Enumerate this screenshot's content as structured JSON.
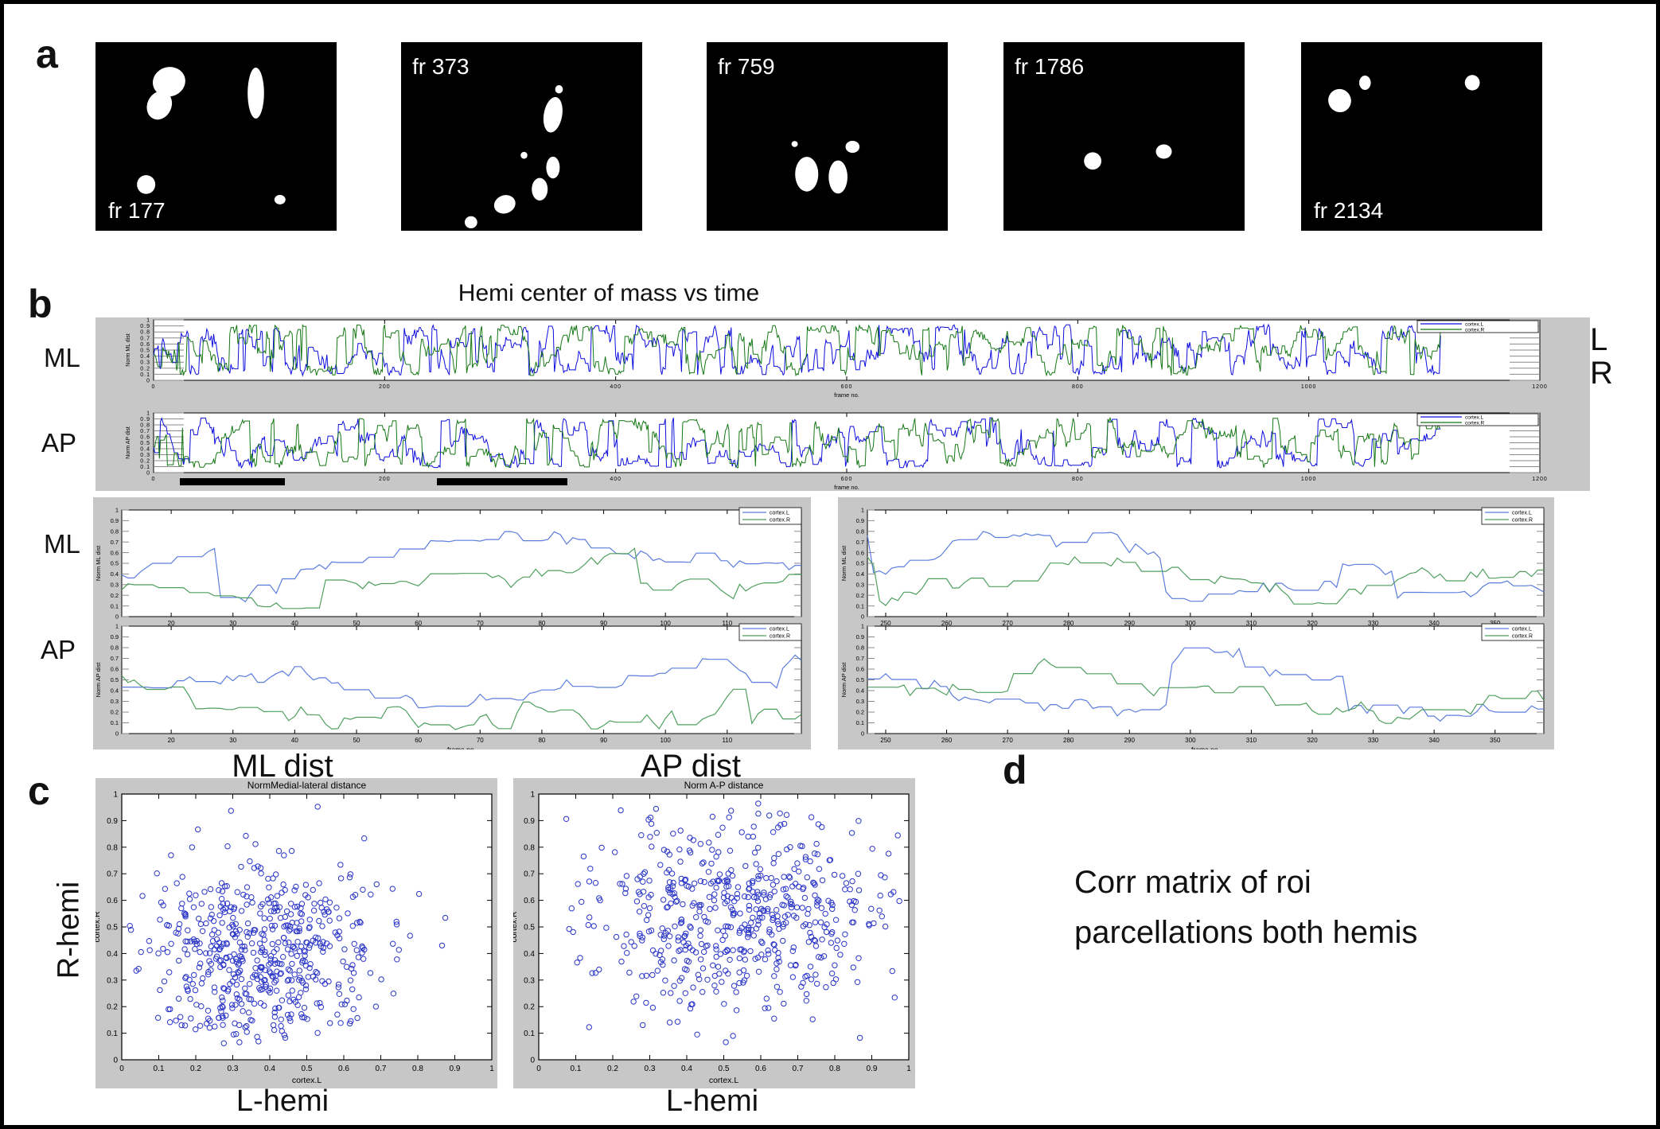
{
  "figure": {
    "bg": "#ffffff",
    "border_color": "#000000",
    "panel_bg": "#c7c7c7"
  },
  "panel_a": {
    "label": "a",
    "frames": [
      {
        "label": "fr 177",
        "label_pos": "bottom-left",
        "blobs": [
          [
            0.305,
            0.21,
            0.068,
            0.078,
            -15
          ],
          [
            0.265,
            0.335,
            0.05,
            0.078,
            25
          ],
          [
            0.665,
            0.27,
            0.034,
            0.135,
            0
          ],
          [
            0.21,
            0.755,
            0.038,
            0.05,
            0
          ],
          [
            0.765,
            0.835,
            0.023,
            0.025,
            0
          ]
        ]
      },
      {
        "label": "fr 373",
        "label_pos": "top-left",
        "blobs": [
          [
            0.63,
            0.385,
            0.038,
            0.095,
            10
          ],
          [
            0.655,
            0.25,
            0.016,
            0.022,
            0
          ],
          [
            0.63,
            0.665,
            0.028,
            0.058,
            0
          ],
          [
            0.575,
            0.78,
            0.033,
            0.06,
            0
          ],
          [
            0.43,
            0.86,
            0.045,
            0.048,
            -20
          ],
          [
            0.29,
            0.955,
            0.026,
            0.032,
            0
          ],
          [
            0.51,
            0.6,
            0.014,
            0.018,
            0
          ]
        ]
      },
      {
        "label": "fr 759",
        "label_pos": "top-left",
        "blobs": [
          [
            0.415,
            0.7,
            0.048,
            0.092,
            0
          ],
          [
            0.545,
            0.715,
            0.039,
            0.088,
            0
          ],
          [
            0.605,
            0.555,
            0.029,
            0.032,
            0
          ],
          [
            0.365,
            0.54,
            0.013,
            0.016,
            0
          ]
        ]
      },
      {
        "label": "fr 1786",
        "label_pos": "top-left",
        "blobs": [
          [
            0.37,
            0.63,
            0.036,
            0.046,
            0
          ],
          [
            0.665,
            0.58,
            0.033,
            0.038,
            0
          ]
        ]
      },
      {
        "label": "fr 2134",
        "label_pos": "bottom-left",
        "blobs": [
          [
            0.16,
            0.31,
            0.047,
            0.062,
            -30
          ],
          [
            0.265,
            0.215,
            0.024,
            0.038,
            0
          ],
          [
            0.71,
            0.215,
            0.031,
            0.041,
            0
          ]
        ]
      }
    ]
  },
  "panel_b": {
    "label": "b",
    "title": "Hemi center of mass vs time",
    "row_labels": [
      "ML",
      "AP",
      "ML",
      "AP"
    ],
    "outer_legend": {
      "items": [
        {
          "label": "L",
          "color": "#0d0dde"
        },
        {
          "label": "R",
          "color": "#157815"
        }
      ]
    },
    "highlight_bars": [
      {
        "from_frame": 23,
        "to_frame": 114
      },
      {
        "from_frame": 245,
        "to_frame": 358
      }
    ]
  },
  "panel_c": {
    "label": "c",
    "left_title": "ML dist",
    "right_title": "AP dist",
    "ylabel_big": "R-hemi",
    "xlabel_big_left": "L-hemi",
    "xlabel_big_right": "L-hemi"
  },
  "panel_d": {
    "label": "d",
    "text_line1": "Corr matrix of roi",
    "text_line2": "parcellations both hemis"
  },
  "chart_data": [
    {
      "id": "ml_time_full",
      "type": "line",
      "kind": "big",
      "ylabel": "Norm ML dist",
      "xlabel": "frame no.",
      "xlim": [
        0,
        1200
      ],
      "ylim": [
        0,
        1
      ],
      "xticks": [
        0,
        200,
        400,
        600,
        800,
        1000,
        1200
      ],
      "yticks": [
        0,
        0.1,
        0.2,
        0.3,
        0.4,
        0.5,
        0.6,
        0.7,
        0.8,
        0.9,
        1
      ],
      "legend": [
        "cortex.L",
        "cortex.R"
      ],
      "legend_pos": "top-right",
      "series": [
        {
          "name": "cortex.L",
          "color": "#0d0dde",
          "gen": {
            "seed": 11,
            "n": 1115,
            "min": 0.08,
            "max": 0.92,
            "step": 0.16,
            "jump": 0.22,
            "holdp": 0.25,
            "holdlen": 3,
            "start": 0.4,
            "estimated": true
          }
        },
        {
          "name": "cortex.R",
          "color": "#157815",
          "gen": {
            "seed": 21,
            "n": 1115,
            "min": 0.08,
            "max": 0.92,
            "step": 0.16,
            "jump": 0.22,
            "holdp": 0.25,
            "holdlen": 3,
            "start": 0.45,
            "estimated": true
          }
        }
      ]
    },
    {
      "id": "ap_time_full",
      "type": "line",
      "kind": "big",
      "ylabel": "Norm AP dist",
      "xlabel": "frame no.",
      "xlim": [
        0,
        1200
      ],
      "ylim": [
        0,
        1
      ],
      "xticks": [
        0,
        200,
        400,
        600,
        800,
        1000,
        1200
      ],
      "yticks": [
        0,
        0.1,
        0.2,
        0.3,
        0.4,
        0.5,
        0.6,
        0.7,
        0.8,
        0.9,
        1
      ],
      "legend": [
        "cortex.L",
        "cortex.R"
      ],
      "legend_pos": "top-right",
      "series": [
        {
          "name": "cortex.L",
          "color": "#0d0dde",
          "gen": {
            "seed": 12,
            "n": 1115,
            "min": 0.08,
            "max": 0.92,
            "step": 0.14,
            "jump": 0.16,
            "holdp": 0.3,
            "holdlen": 4,
            "start": 0.55,
            "estimated": true
          }
        },
        {
          "name": "cortex.R",
          "color": "#157815",
          "gen": {
            "seed": 22,
            "n": 1115,
            "min": 0.08,
            "max": 0.92,
            "step": 0.14,
            "jump": 0.16,
            "holdp": 0.3,
            "holdlen": 4,
            "start": 0.5,
            "estimated": true
          }
        }
      ]
    },
    {
      "id": "ml_zoom_early",
      "type": "line",
      "kind": "zoom",
      "ylabel": "Norm ML dist",
      "xlabel": "frame no.",
      "xlim": [
        12,
        122
      ],
      "ylim": [
        0,
        1
      ],
      "xticks": [
        20,
        30,
        40,
        50,
        60,
        70,
        80,
        90,
        100,
        110
      ],
      "yticks": [
        0,
        0.1,
        0.2,
        0.3,
        0.4,
        0.5,
        0.6,
        0.7,
        0.8,
        0.9,
        1
      ],
      "legend": [
        "cortex.L",
        "cortex.R"
      ],
      "legend_pos": "top-right",
      "series": [
        {
          "name": "cortex.L",
          "color": "#5b7ddd",
          "gen": {
            "seed": 31,
            "n": 111,
            "min": 0.05,
            "max": 0.8,
            "step": 0.09,
            "jump": 0.05,
            "holdp": 0.4,
            "holdlen": 4,
            "start": 0.33,
            "estimated": true
          }
        },
        {
          "name": "cortex.R",
          "color": "#4f9f5f",
          "gen": {
            "seed": 41,
            "n": 111,
            "min": 0.06,
            "max": 0.65,
            "step": 0.08,
            "jump": 0.05,
            "holdp": 0.4,
            "holdlen": 4,
            "start": 0.25,
            "estimated": true
          }
        }
      ]
    },
    {
      "id": "ap_zoom_early",
      "type": "line",
      "kind": "zoom",
      "ylabel": "Norm AP dist",
      "xlabel": "frame no.",
      "xlim": [
        12,
        122
      ],
      "ylim": [
        0,
        1
      ],
      "xticks": [
        20,
        30,
        40,
        50,
        60,
        70,
        80,
        90,
        100,
        110
      ],
      "yticks": [
        0,
        0.1,
        0.2,
        0.3,
        0.4,
        0.5,
        0.6,
        0.7,
        0.8,
        0.9,
        1
      ],
      "legend": [
        "cortex.L",
        "cortex.R"
      ],
      "legend_pos": "top-right",
      "series": [
        {
          "name": "cortex.L",
          "color": "#5b7ddd",
          "gen": {
            "seed": 32,
            "n": 111,
            "min": 0.1,
            "max": 0.85,
            "step": 0.09,
            "jump": 0.05,
            "holdp": 0.4,
            "holdlen": 4,
            "start": 0.38,
            "estimated": true
          }
        },
        {
          "name": "cortex.R",
          "color": "#4f9f5f",
          "gen": {
            "seed": 42,
            "n": 111,
            "min": 0.03,
            "max": 0.78,
            "step": 0.1,
            "jump": 0.06,
            "holdp": 0.35,
            "holdlen": 4,
            "start": 0.55,
            "estimated": true
          }
        }
      ]
    },
    {
      "id": "ml_zoom_late",
      "type": "line",
      "kind": "zoom",
      "ylabel": "Norm ML dist",
      "xlabel": "frame no.",
      "xlim": [
        247,
        358
      ],
      "ylim": [
        0,
        1
      ],
      "xticks": [
        250,
        260,
        270,
        280,
        290,
        300,
        310,
        320,
        330,
        340,
        350
      ],
      "yticks": [
        0,
        0.1,
        0.2,
        0.3,
        0.4,
        0.5,
        0.6,
        0.7,
        0.8,
        0.9,
        1
      ],
      "legend": [
        "cortex.L",
        "cortex.R"
      ],
      "legend_pos": "top-right",
      "series": [
        {
          "name": "cortex.L",
          "color": "#5b7ddd",
          "gen": {
            "seed": 33,
            "n": 112,
            "min": 0.1,
            "max": 0.8,
            "step": 0.09,
            "jump": 0.05,
            "holdp": 0.4,
            "holdlen": 4,
            "start": 0.72,
            "estimated": true
          }
        },
        {
          "name": "cortex.R",
          "color": "#4f9f5f",
          "gen": {
            "seed": 43,
            "n": 112,
            "min": 0.1,
            "max": 0.87,
            "step": 0.09,
            "jump": 0.05,
            "holdp": 0.4,
            "holdlen": 4,
            "start": 0.6,
            "estimated": true
          }
        }
      ]
    },
    {
      "id": "ap_zoom_late",
      "type": "line",
      "kind": "zoom",
      "ylabel": "Norm AP dist",
      "xlabel": "frame no.",
      "xlim": [
        247,
        358
      ],
      "ylim": [
        0,
        1
      ],
      "xticks": [
        250,
        260,
        270,
        280,
        290,
        300,
        310,
        320,
        330,
        340,
        350
      ],
      "yticks": [
        0,
        0.1,
        0.2,
        0.3,
        0.4,
        0.5,
        0.6,
        0.7,
        0.8,
        0.9,
        1
      ],
      "legend": [
        "cortex.L",
        "cortex.R"
      ],
      "legend_pos": "top-right",
      "series": [
        {
          "name": "cortex.L",
          "color": "#5b7ddd",
          "gen": {
            "seed": 34,
            "n": 112,
            "min": 0.1,
            "max": 0.8,
            "step": 0.09,
            "jump": 0.05,
            "holdp": 0.4,
            "holdlen": 4,
            "start": 0.45,
            "estimated": true
          }
        },
        {
          "name": "cortex.R",
          "color": "#4f9f5f",
          "gen": {
            "seed": 44,
            "n": 112,
            "min": 0.08,
            "max": 0.85,
            "step": 0.1,
            "jump": 0.06,
            "holdp": 0.35,
            "holdlen": 4,
            "start": 0.5,
            "estimated": true
          }
        }
      ]
    },
    {
      "id": "ml_dist_scatter",
      "type": "scatter",
      "kind": "scatter",
      "title": "NormMedial-lateral distance",
      "xlabel": "cortex.L",
      "ylabel": "cortex.R",
      "xlim": [
        0,
        1
      ],
      "ylim": [
        0,
        1
      ],
      "xticks": [
        0,
        0.1,
        0.2,
        0.3,
        0.4,
        0.5,
        0.6,
        0.7,
        0.8,
        0.9,
        1
      ],
      "yticks": [
        0,
        0.1,
        0.2,
        0.3,
        0.4,
        0.5,
        0.6,
        0.7,
        0.8,
        0.9,
        1
      ],
      "marker": "open-circle",
      "color": "#2a35c8",
      "cloud": {
        "n": 560,
        "center": [
          0.38,
          0.4
        ],
        "sd": [
          0.16,
          0.17
        ],
        "seed": 71,
        "estimated": true
      }
    },
    {
      "id": "ap_dist_scatter",
      "type": "scatter",
      "kind": "scatter",
      "title": "Norm A-P distance",
      "xlabel": "cortex.L",
      "ylabel": "cortex.R",
      "xlim": [
        0,
        1
      ],
      "ylim": [
        0,
        1
      ],
      "xticks": [
        0,
        0.1,
        0.2,
        0.3,
        0.4,
        0.5,
        0.6,
        0.7,
        0.8,
        0.9,
        1
      ],
      "yticks": [
        0,
        0.1,
        0.2,
        0.3,
        0.4,
        0.5,
        0.6,
        0.7,
        0.8,
        0.9,
        1
      ],
      "marker": "open-circle",
      "color": "#2a35c8",
      "cloud": {
        "n": 560,
        "center": [
          0.54,
          0.55
        ],
        "sd": [
          0.21,
          0.18
        ],
        "seed": 72,
        "estimated": true
      }
    }
  ]
}
